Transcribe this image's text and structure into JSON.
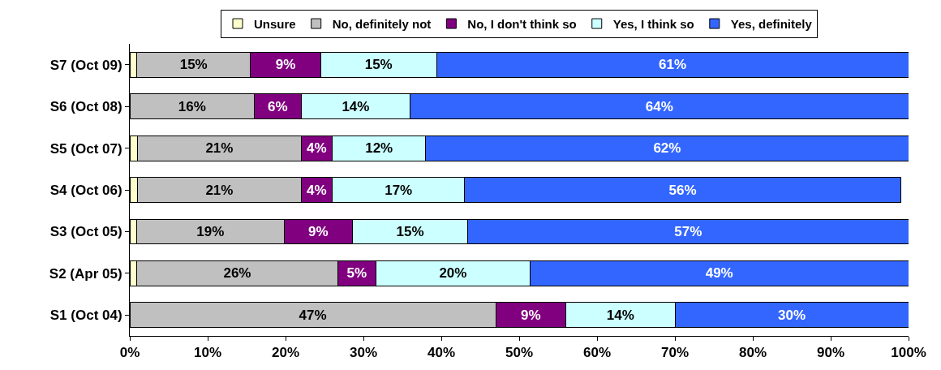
{
  "chart_data": {
    "type": "bar",
    "orientation": "horizontal",
    "stacked": true,
    "categories": [
      "S7 (Oct 09)",
      "S6 (Oct 08)",
      "S5 (Oct 07)",
      "S4 (Oct 06)",
      "S3 (Oct 05)",
      "S2 (Apr 05)",
      "S1 (Oct 04)"
    ],
    "series": [
      {
        "name": "Unsure",
        "color": "#ffffcc",
        "values": [
          0.9,
          null,
          1,
          1,
          0.9,
          0.9,
          null
        ],
        "value_labels": [
          null,
          null,
          null,
          null,
          null,
          null,
          null
        ]
      },
      {
        "name": "No, definitely not",
        "color": "#c0c0c0",
        "values": [
          14.6,
          16,
          21,
          21,
          18.9,
          25.8,
          47
        ],
        "value_labels": [
          "15%",
          "16%",
          "21%",
          "21%",
          "19%",
          "26%",
          "47%"
        ]
      },
      {
        "name": "No, I don't think so",
        "color": "#800080",
        "values": [
          9,
          6,
          4,
          4,
          8.8,
          4.9,
          9
        ],
        "value_labels": [
          "9%",
          "6%",
          "4%",
          "4%",
          "9%",
          "5%",
          "9%"
        ]
      },
      {
        "name": "Yes, I think so",
        "color": "#ccffff",
        "values": [
          14.9,
          14,
          12,
          17,
          14.8,
          19.8,
          14
        ],
        "value_labels": [
          "15%",
          "14%",
          "12%",
          "17%",
          "15%",
          "20%",
          "14%"
        ]
      },
      {
        "name": "Yes, definitely",
        "color": "#3366ff",
        "values": [
          60.6,
          64,
          62,
          56,
          56.6,
          48.6,
          30
        ],
        "value_labels": [
          "61%",
          "64%",
          "62%",
          "56%",
          "57%",
          "49%",
          "30%"
        ]
      }
    ],
    "xlim": [
      0,
      100
    ],
    "xticks": [
      {
        "value": 0,
        "label": "0%"
      },
      {
        "value": 10,
        "label": "10%"
      },
      {
        "value": 20,
        "label": "20%"
      },
      {
        "value": 30,
        "label": "30%"
      },
      {
        "value": 40,
        "label": "40%"
      },
      {
        "value": 50,
        "label": "50%"
      },
      {
        "value": 60,
        "label": "60%"
      },
      {
        "value": 70,
        "label": "70%"
      },
      {
        "value": 80,
        "label": "80%"
      },
      {
        "value": 90,
        "label": "90%"
      },
      {
        "value": 100,
        "label": "100%"
      }
    ],
    "legend": "top"
  }
}
